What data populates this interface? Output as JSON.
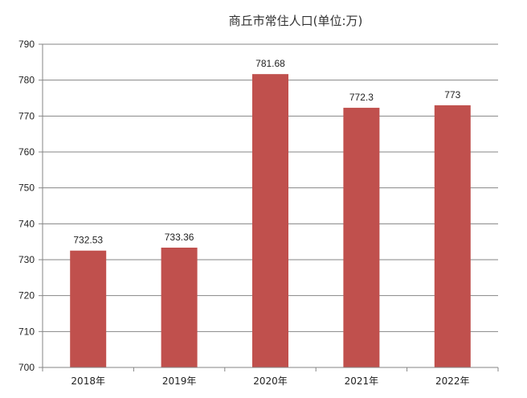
{
  "chart_data": {
    "type": "bar",
    "title": "商丘市常住人口(单位:万)",
    "categories": [
      "2018年",
      "2019年",
      "2020年",
      "2021年",
      "2022年"
    ],
    "values": [
      732.53,
      733.36,
      781.68,
      772.3,
      773
    ],
    "data_labels": [
      "732.53",
      "733.36",
      "781.68",
      "772.3",
      "773"
    ],
    "ylim": [
      700,
      790
    ],
    "yticks": [
      700,
      710,
      720,
      730,
      740,
      750,
      760,
      770,
      780,
      790
    ],
    "xlabel": "",
    "ylabel": "",
    "grid": true,
    "legend": "none",
    "bar_color": "#c0504d",
    "grid_color": "#868686",
    "axis_color": "#868686"
  }
}
